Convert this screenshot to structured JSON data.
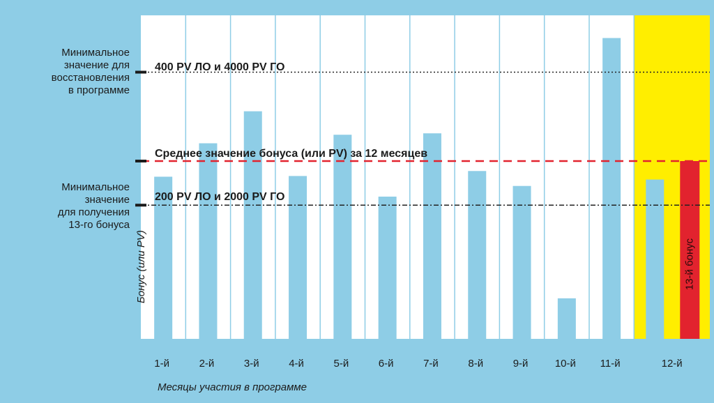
{
  "chart_data": {
    "type": "bar",
    "categories": [
      "1-й",
      "2-й",
      "3-й",
      "4-й",
      "5-й",
      "6-й",
      "7-й",
      "8-й",
      "9-й",
      "10-й",
      "11-й",
      "12-й"
    ],
    "values": [
      228,
      275,
      320,
      229,
      287,
      200,
      289,
      236,
      215,
      57,
      423,
      224
    ],
    "extra_bar": {
      "category": "12-й",
      "value": 250,
      "label": "13-й бонус",
      "color": "#e2232e"
    },
    "xlabel": "Месяцы участия в программе",
    "ylabel": "Бонус (или PV)",
    "reference_lines": [
      {
        "id": "restore",
        "value": 375,
        "label": "400 PV ЛО и 4000 PV ГО",
        "side_label": "Минимальное\nзначение для\nвосстановления\nв программе",
        "style": "dotted"
      },
      {
        "id": "average",
        "value": 250,
        "label": "Среднее значение бонуса (или PV) за 12 месяцев",
        "style": "dashed",
        "color": "#e2232e"
      },
      {
        "id": "minimum",
        "value": 188,
        "label": "200 PV ЛО и 2000 PV ГО",
        "side_label": "Минимальное\nзначение\nдля получения\n13-го бонуса",
        "style": "dashdot"
      }
    ],
    "highlight": {
      "category": "12-й",
      "color": "#ffee00"
    },
    "colors": {
      "bar": "#8ecde6",
      "plot_bg": "#ffffff",
      "grid": "#8ecde6",
      "background": "#8ecde6"
    },
    "grid": true
  }
}
